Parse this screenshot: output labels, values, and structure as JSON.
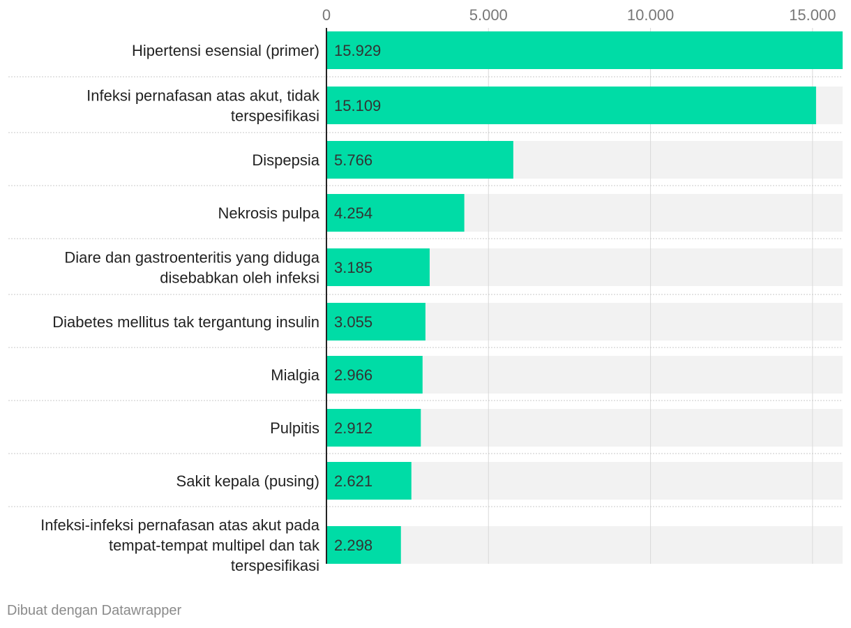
{
  "chart_data": {
    "type": "bar",
    "orientation": "horizontal",
    "title": "",
    "xlabel": "",
    "ylabel": "",
    "xlim": [
      0,
      15929
    ],
    "ticks": [
      0,
      5000,
      10000,
      15000
    ],
    "tick_labels": [
      "0",
      "5.000",
      "10.000",
      "15.000"
    ],
    "grid": true,
    "categories": [
      [
        "Hipertensi esensial (primer)"
      ],
      [
        "Infeksi pernafasan atas akut, tidak",
        "terspesifikasi"
      ],
      [
        "Dispepsia"
      ],
      [
        "Nekrosis pulpa"
      ],
      [
        "Diare dan gastroenteritis yang diduga",
        "disebabkan oleh infeksi"
      ],
      [
        "Diabetes mellitus tak tergantung insulin"
      ],
      [
        "Mialgia"
      ],
      [
        "Pulpitis"
      ],
      [
        "Sakit kepala (pusing)"
      ],
      [
        "Infeksi-infeksi pernafasan atas akut pada",
        "tempat-tempat multipel dan tak",
        "terspesifikasi"
      ]
    ],
    "values": [
      15929,
      15109,
      5766,
      4254,
      3185,
      3055,
      2966,
      2912,
      2621,
      2298
    ],
    "value_labels": [
      "15.929",
      "15.109",
      "5.766",
      "4.254",
      "3.185",
      "3.055",
      "2.966",
      "2.912",
      "2.621",
      "2.298"
    ],
    "colors": {
      "bar": "#00dca6",
      "track": "#f2f2f2",
      "grid": "#d9d9d9",
      "separator": "#c8c8c8",
      "axis": "#222222"
    }
  },
  "footer": {
    "credit": "Dibuat dengan Datawrapper"
  }
}
